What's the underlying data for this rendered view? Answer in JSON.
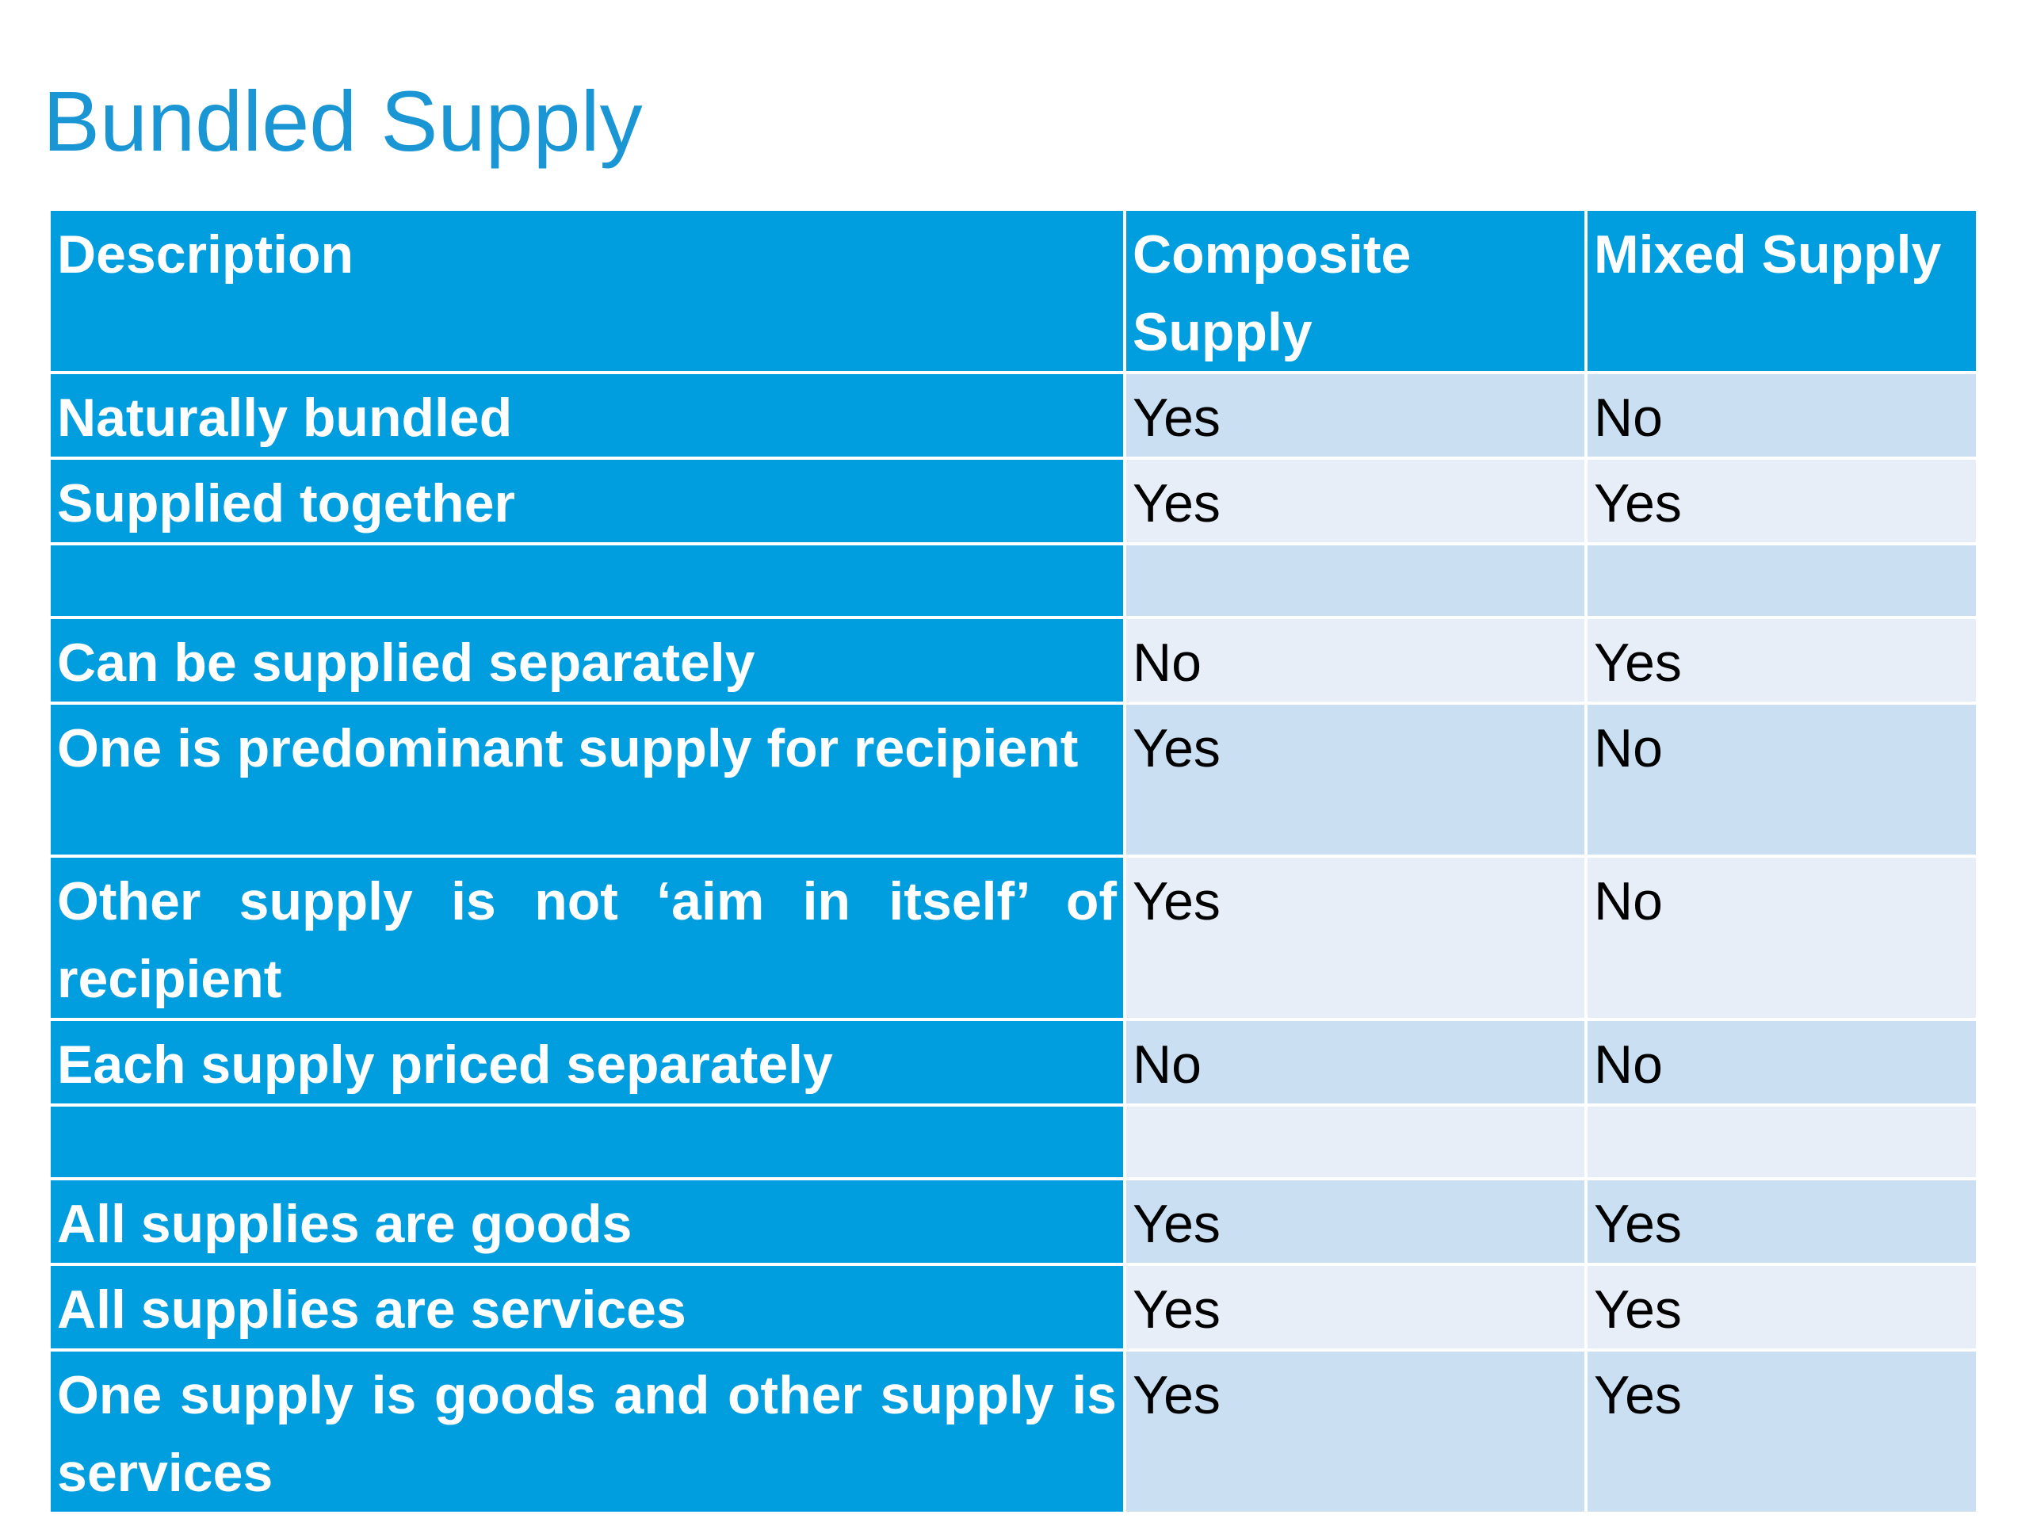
{
  "title": "Bundled Supply",
  "colors": {
    "title": "#1a96d4",
    "header_bg": "#009ddf",
    "row_dark": "#cadff2",
    "row_light": "#e7eef8"
  },
  "table": {
    "headers": [
      "Description",
      "Composite Supply",
      "Mixed Supply"
    ],
    "rows": [
      {
        "description": "Naturally bundled",
        "composite": "Yes",
        "mixed": "No"
      },
      {
        "description": "Supplied together",
        "composite": "Yes",
        "mixed": "Yes"
      },
      {
        "description": "",
        "composite": "",
        "mixed": ""
      },
      {
        "description": "Can be supplied separately",
        "composite": "No",
        "mixed": "Yes"
      },
      {
        "description": "One is predominant supply for recipient",
        "composite": "Yes",
        "mixed": "No"
      },
      {
        "description": "Other supply is not ‘aim in itself’ of recipient",
        "composite": "Yes",
        "mixed": "No"
      },
      {
        "description": "Each supply priced separately",
        "composite": "No",
        "mixed": "No"
      },
      {
        "description": "",
        "composite": "",
        "mixed": ""
      },
      {
        "description": "All supplies are goods",
        "composite": "Yes",
        "mixed": "Yes"
      },
      {
        "description": "All supplies are services",
        "composite": "Yes",
        "mixed": "Yes"
      },
      {
        "description": "One supply is goods and other supply is services",
        "composite": "Yes",
        "mixed": "Yes"
      }
    ]
  }
}
